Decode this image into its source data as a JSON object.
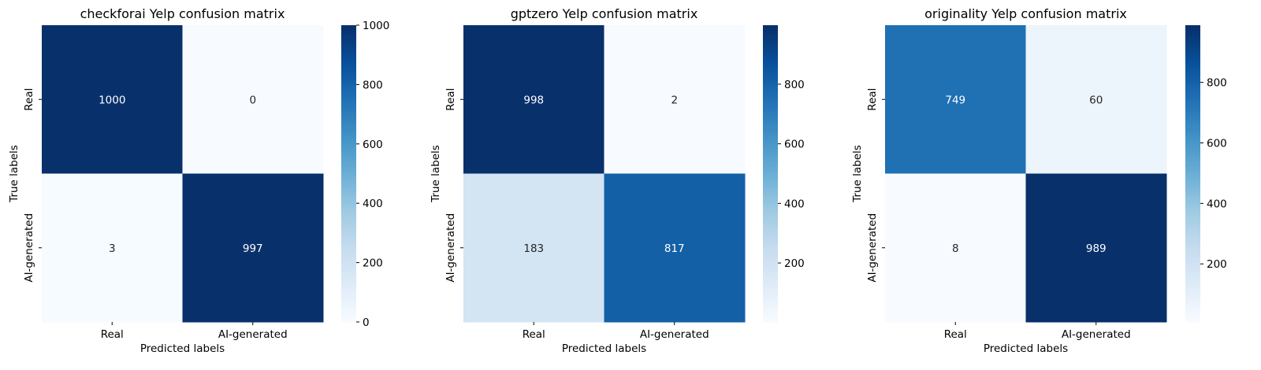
{
  "chart_data": [
    {
      "type": "heatmap",
      "title": "checkforai Yelp confusion matrix",
      "xlabel": "Predicted labels",
      "ylabel": "True labels",
      "x_categories": [
        "Real",
        "AI-generated"
      ],
      "y_categories": [
        "Real",
        "AI-generated"
      ],
      "values": [
        [
          1000,
          0
        ],
        [
          3,
          997
        ]
      ],
      "colorbar": {
        "range": [
          0,
          1000
        ],
        "ticks": [
          0,
          200,
          400,
          600,
          800,
          1000
        ],
        "colormap": "Blues"
      },
      "grid": false,
      "legend": "colorbar-right"
    },
    {
      "type": "heatmap",
      "title": "gptzero Yelp confusion matrix",
      "xlabel": "Predicted labels",
      "ylabel": "True labels",
      "x_categories": [
        "Real",
        "AI-generated"
      ],
      "y_categories": [
        "Real",
        "AI-generated"
      ],
      "values": [
        [
          998,
          2
        ],
        [
          183,
          817
        ]
      ],
      "colorbar": {
        "range": [
          2,
          998
        ],
        "ticks": [
          200,
          400,
          600,
          800
        ],
        "colormap": "Blues"
      },
      "grid": false,
      "legend": "colorbar-right"
    },
    {
      "type": "heatmap",
      "title": "originality Yelp confusion matrix",
      "xlabel": "Predicted labels",
      "ylabel": "True labels",
      "x_categories": [
        "Real",
        "AI-generated"
      ],
      "y_categories": [
        "Real",
        "AI-generated"
      ],
      "values": [
        [
          749,
          60
        ],
        [
          8,
          989
        ]
      ],
      "colorbar": {
        "range": [
          8,
          989
        ],
        "ticks": [
          200,
          400,
          600,
          800
        ],
        "colormap": "Blues"
      },
      "grid": false,
      "legend": "colorbar-right"
    }
  ],
  "colors": {
    "blues": [
      "#f7fbff",
      "#deebf7",
      "#c6dbef",
      "#9ecae1",
      "#6baed6",
      "#4292c6",
      "#2171b5",
      "#08519c",
      "#08306b"
    ],
    "text_dark": "#262626",
    "text_light": "#ffffff",
    "axis": "#000000"
  }
}
